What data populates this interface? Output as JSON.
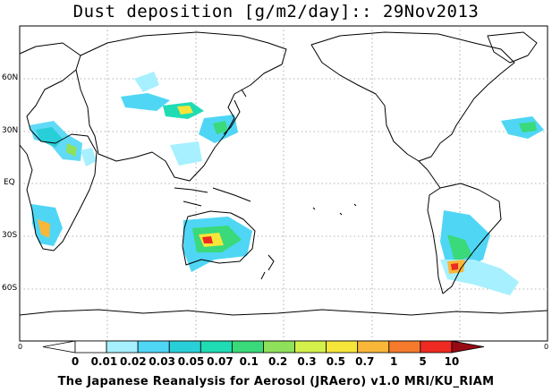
{
  "title": "Dust deposition [g/m2/day]:: 29Nov2013",
  "lat_labels": [
    "60N",
    "30N",
    "EQ",
    "30S",
    "60S"
  ],
  "corner_labels": {
    "left": "0",
    "right": "0"
  },
  "colorbar": {
    "labels": [
      "0",
      "0.01",
      "0.02",
      "0.03",
      "0.05",
      "0.07",
      "0.1",
      "0.2",
      "0.3",
      "0.5",
      "0.7",
      "1",
      "5",
      "10"
    ],
    "colors": [
      "#ffffff",
      "#a6f0ff",
      "#4fd6f5",
      "#29cfd8",
      "#1fdcb4",
      "#3ad97a",
      "#8fe05a",
      "#d4f04a",
      "#f6e63a",
      "#f8b738",
      "#f57a2c",
      "#ee2a22",
      "#c4121e",
      "#960a14"
    ]
  },
  "footer": "The Japanese Reanalysis for Aerosol (JRAero) v1.0 MRI/KU_RIAM"
}
